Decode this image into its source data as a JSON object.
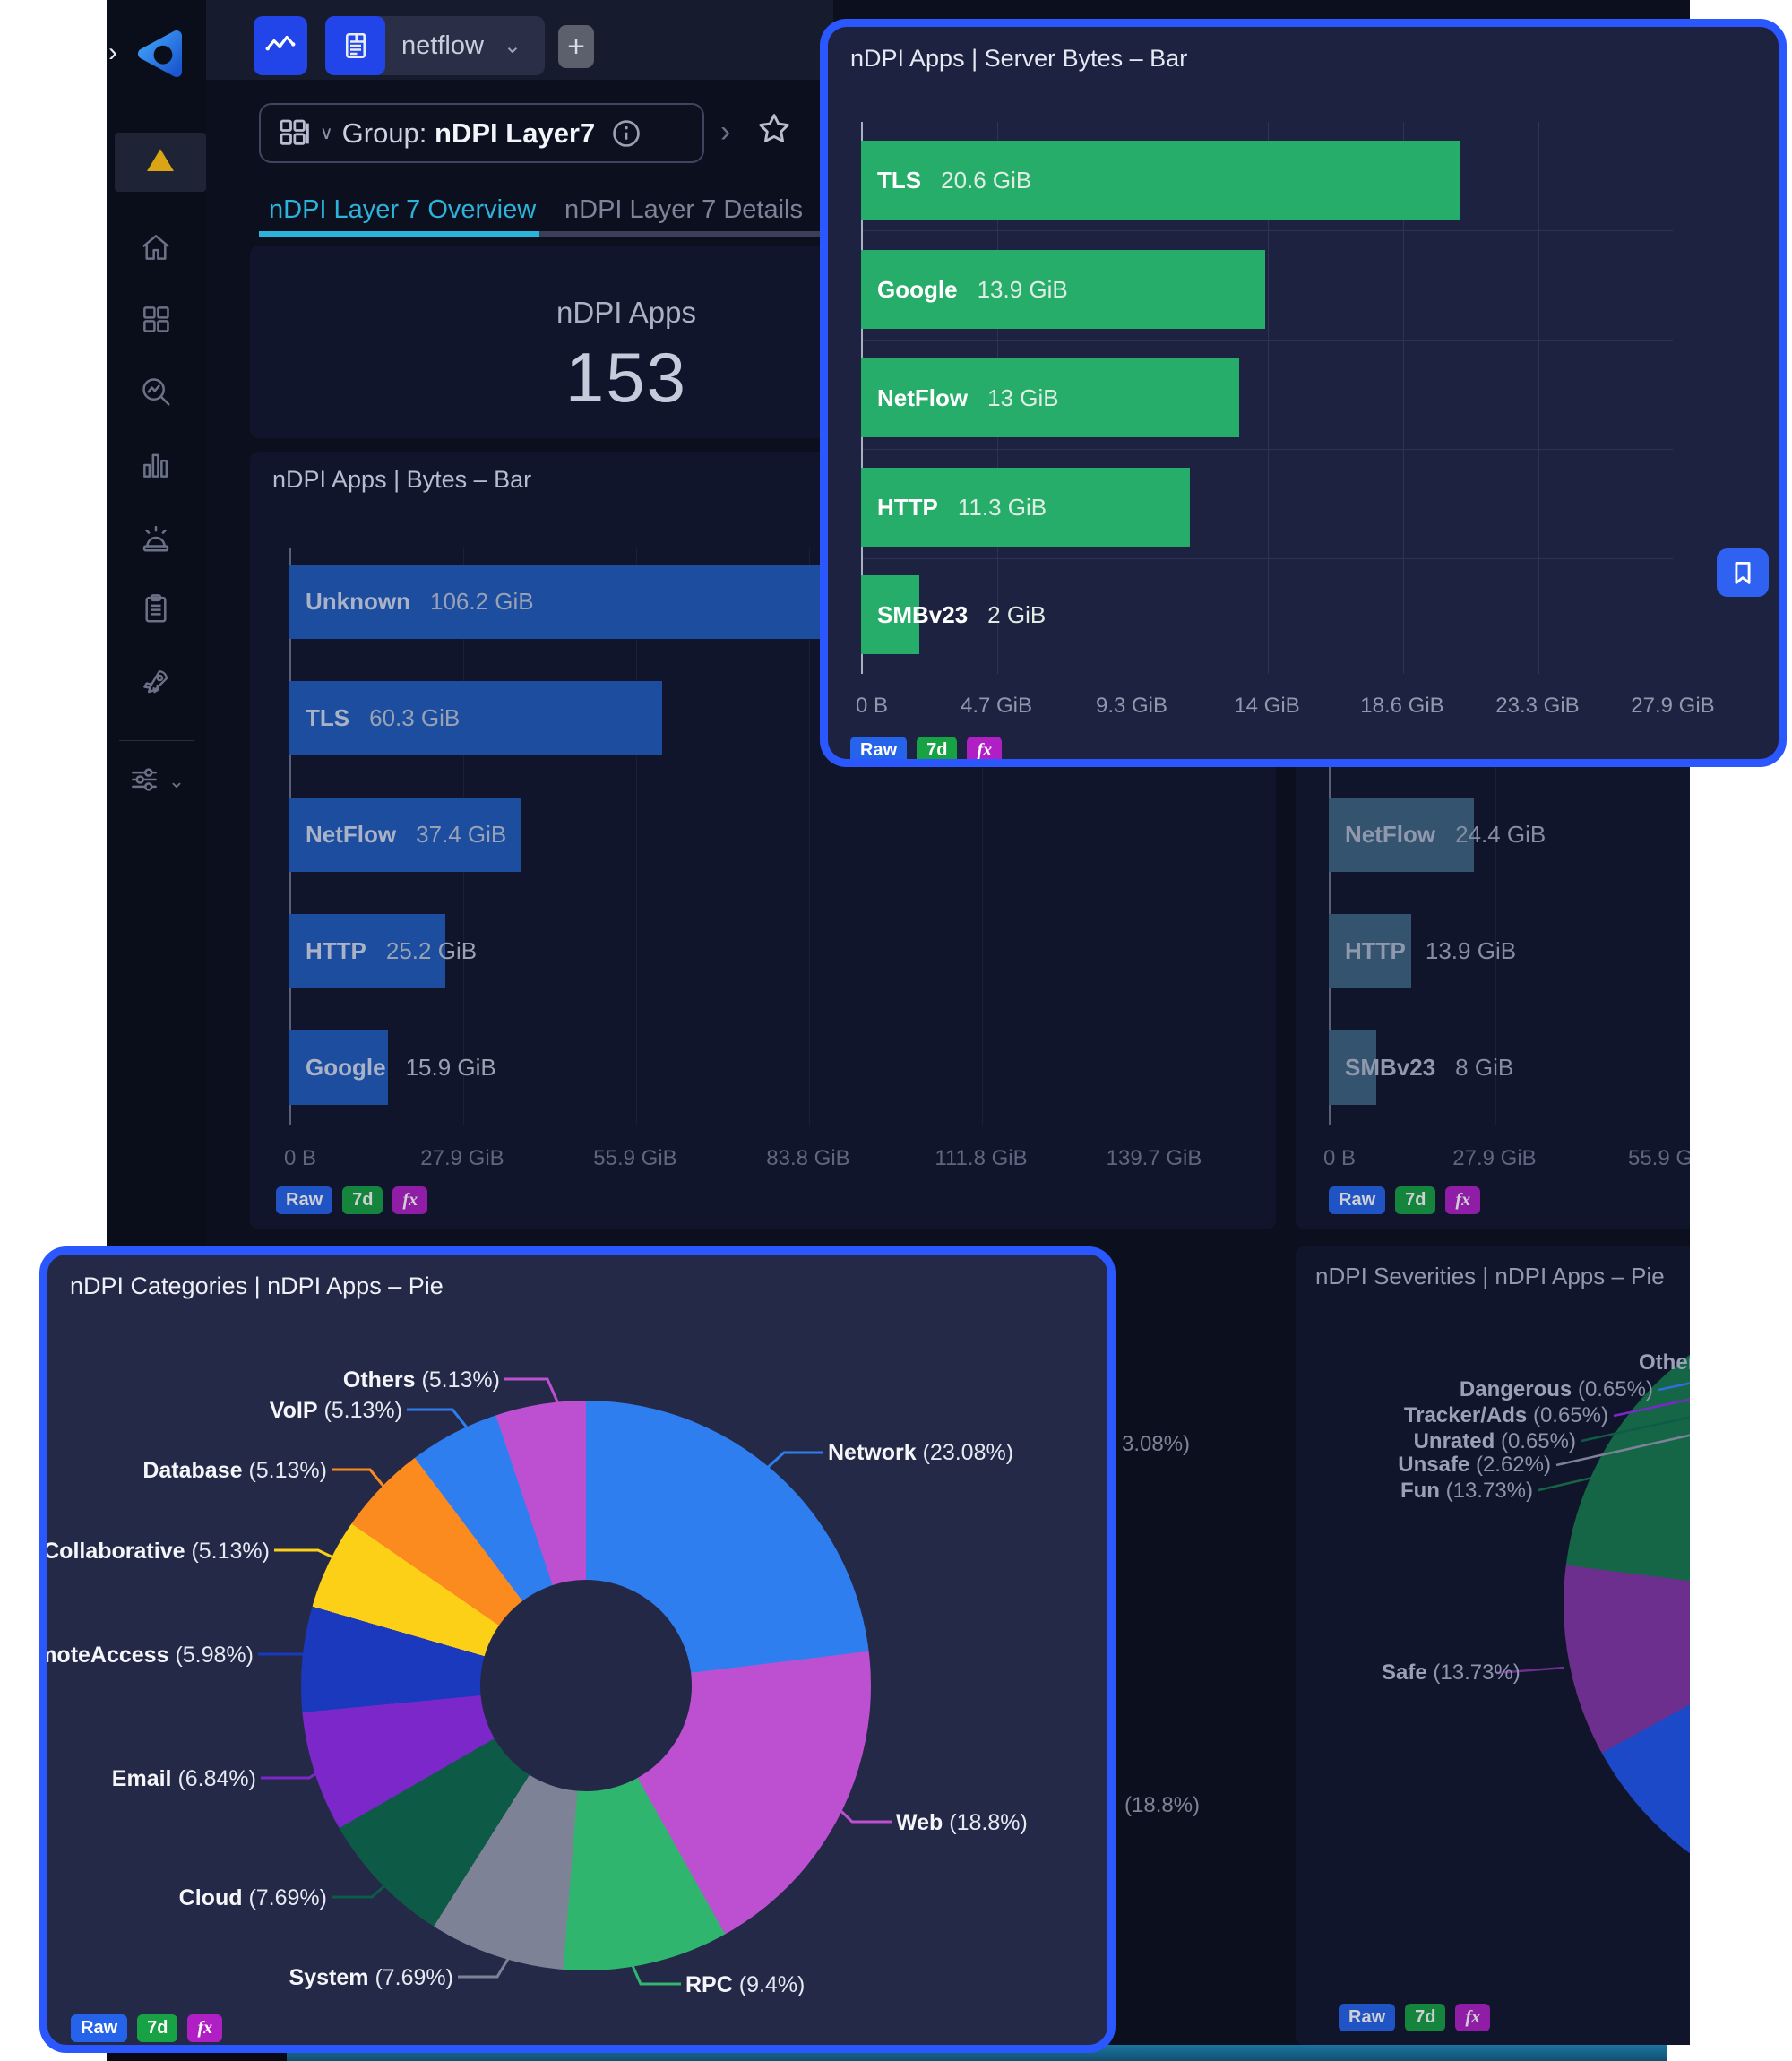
{
  "app": {
    "sidebar_expand": "›"
  },
  "header": {
    "workspace": "netflow",
    "add_label": "+"
  },
  "sidebar": {
    "items": [
      {
        "icon": "alert-triangle-icon",
        "active": true
      },
      {
        "icon": "home-icon",
        "active": false
      },
      {
        "icon": "apps-grid-icon",
        "active": false
      },
      {
        "icon": "analytics-icon",
        "active": false
      },
      {
        "icon": "bar-chart-icon",
        "active": false
      },
      {
        "icon": "alarm-icon",
        "active": false
      },
      {
        "icon": "report-icon",
        "active": false
      },
      {
        "icon": "rocket-icon",
        "active": false
      }
    ],
    "footer_icon": "filters-icon"
  },
  "breadcrumb": {
    "prefix": "Group:",
    "name": "nDPI Layer7"
  },
  "tabs": [
    {
      "label": "nDPI Layer 7 Overview",
      "active": true
    },
    {
      "label": "nDPI Layer 7 Details",
      "active": false
    }
  ],
  "stat_panel": {
    "label": "nDPI Apps",
    "value": "153"
  },
  "colors": {
    "accent_blue": "#2563eb",
    "tag_green": "#17a243",
    "tag_magenta": "#b01fc4",
    "highlight_border": "#2b57fe",
    "bar_blue": "#1c4d9e",
    "bar_green": "#27ad6a",
    "bar_muted": "#33536f",
    "tab_active": "#2bb3dc"
  },
  "chart_data": [
    {
      "id": "apps_bytes_bar",
      "type": "bar",
      "orientation": "horizontal",
      "title": "nDPI Apps | Bytes – Bar",
      "categories": [
        "Unknown",
        "TLS",
        "NetFlow",
        "HTTP",
        "Google"
      ],
      "values": [
        106.2,
        60.3,
        37.4,
        25.2,
        15.9
      ],
      "value_labels": [
        "106.2 GiB",
        "60.3 GiB",
        "37.4 GiB",
        "25.2 GiB",
        "15.9 GiB"
      ],
      "x_ticks": [
        "0 B",
        "27.9 GiB",
        "55.9 GiB",
        "83.8 GiB",
        "111.8 GiB",
        "139.7 GiB"
      ],
      "x_max": 139.7,
      "unit": "GiB",
      "tags": [
        "Raw",
        "7d",
        "fx"
      ]
    },
    {
      "id": "server_bytes_bar",
      "type": "bar",
      "orientation": "horizontal",
      "title": "nDPI Apps | Server Bytes – Bar",
      "categories": [
        "TLS",
        "Google",
        "NetFlow",
        "HTTP",
        "SMBv23"
      ],
      "values": [
        20.6,
        13.9,
        13,
        11.3,
        2
      ],
      "value_labels": [
        "20.6 GiB",
        "13.9 GiB",
        "13 GiB",
        "11.3 GiB",
        "2 GiB"
      ],
      "x_ticks": [
        "0 B",
        "4.7 GiB",
        "9.3 GiB",
        "14 GiB",
        "18.6 GiB",
        "23.3 GiB",
        "27.9 GiB"
      ],
      "x_max": 27.9,
      "unit": "GiB",
      "tags": [
        "Raw",
        "7d",
        "fx"
      ]
    },
    {
      "id": "partial_bytes_bar",
      "type": "bar",
      "orientation": "horizontal",
      "title": "",
      "categories": [
        "NetFlow",
        "HTTP",
        "SMBv23"
      ],
      "values": [
        24.4,
        13.9,
        8
      ],
      "value_labels": [
        "24.4 GiB",
        "13.9 GiB",
        "8 GiB"
      ],
      "x_ticks": [
        "0 B",
        "27.9 GiB",
        "55.9 G"
      ],
      "x_max": 55.9,
      "unit": "GiB",
      "tags": [
        "Raw",
        "7d",
        "fx"
      ]
    },
    {
      "id": "categories_pie",
      "type": "pie",
      "title": "nDPI Categories | nDPI Apps – Pie",
      "slices": [
        {
          "name": "Network",
          "value": 23.08,
          "pct_label": "(23.08%)",
          "color": "#2e7ef0"
        },
        {
          "name": "Web",
          "value": 18.8,
          "pct_label": "(18.8%)",
          "color": "#bd4fd1"
        },
        {
          "name": "RPC",
          "value": 9.4,
          "pct_label": "(9.4%)",
          "color": "#2fb56e"
        },
        {
          "name": "System",
          "value": 7.69,
          "pct_label": "(7.69%)",
          "color": "#7d8297"
        },
        {
          "name": "Cloud",
          "value": 7.69,
          "pct_label": "(7.69%)",
          "color": "#0d5a47"
        },
        {
          "name": "Email",
          "value": 6.84,
          "pct_label": "(6.84%)",
          "color": "#7b27c9"
        },
        {
          "name": "RemoteAccess",
          "value": 5.98,
          "pct_label": "(5.98%)",
          "color": "#1a39bd"
        },
        {
          "name": "Collaborative",
          "value": 5.13,
          "pct_label": "(5.13%)",
          "color": "#fdd018"
        },
        {
          "name": "Database",
          "value": 5.13,
          "pct_label": "(5.13%)",
          "color": "#fb8b1e"
        },
        {
          "name": "VoIP",
          "value": 5.13,
          "pct_label": "(5.13%)",
          "color": "#2e7ef0"
        },
        {
          "name": "Others",
          "value": 5.13,
          "pct_label": "(5.13%)",
          "color": "#bd4fd1"
        }
      ],
      "tags": [
        "Raw",
        "7d",
        "fx"
      ]
    },
    {
      "id": "severities_pie",
      "type": "pie",
      "title": "nDPI Severities | nDPI Apps – Pie",
      "labels": [
        {
          "name": "Other",
          "pct_label": "",
          "leader_color": ""
        },
        {
          "name": "Dangerous",
          "pct_label": "(0.65%)",
          "leader_color": "#2f6fd8"
        },
        {
          "name": "Tracker/Ads",
          "pct_label": "(0.65%)",
          "leader_color": "#7a28c7"
        },
        {
          "name": "Unrated",
          "pct_label": "(0.65%)",
          "leader_color": "#0e5c48"
        },
        {
          "name": "Unsafe",
          "pct_label": "(2.62%)",
          "leader_color": "#7d8297"
        },
        {
          "name": "Fun",
          "pct_label": "(13.73%)",
          "leader_color": "#156646"
        },
        {
          "name": "Safe",
          "pct_label": "(13.73%)",
          "leader_color": "#6d2f8e"
        }
      ],
      "visible_slice_colors": [
        "#156646",
        "#6d2f8e",
        "#1c49c8"
      ],
      "tags": [
        "Raw",
        "7d",
        "fx"
      ]
    }
  ],
  "covered_fragments": [
    "3.08%)",
    "(18.8%)"
  ]
}
